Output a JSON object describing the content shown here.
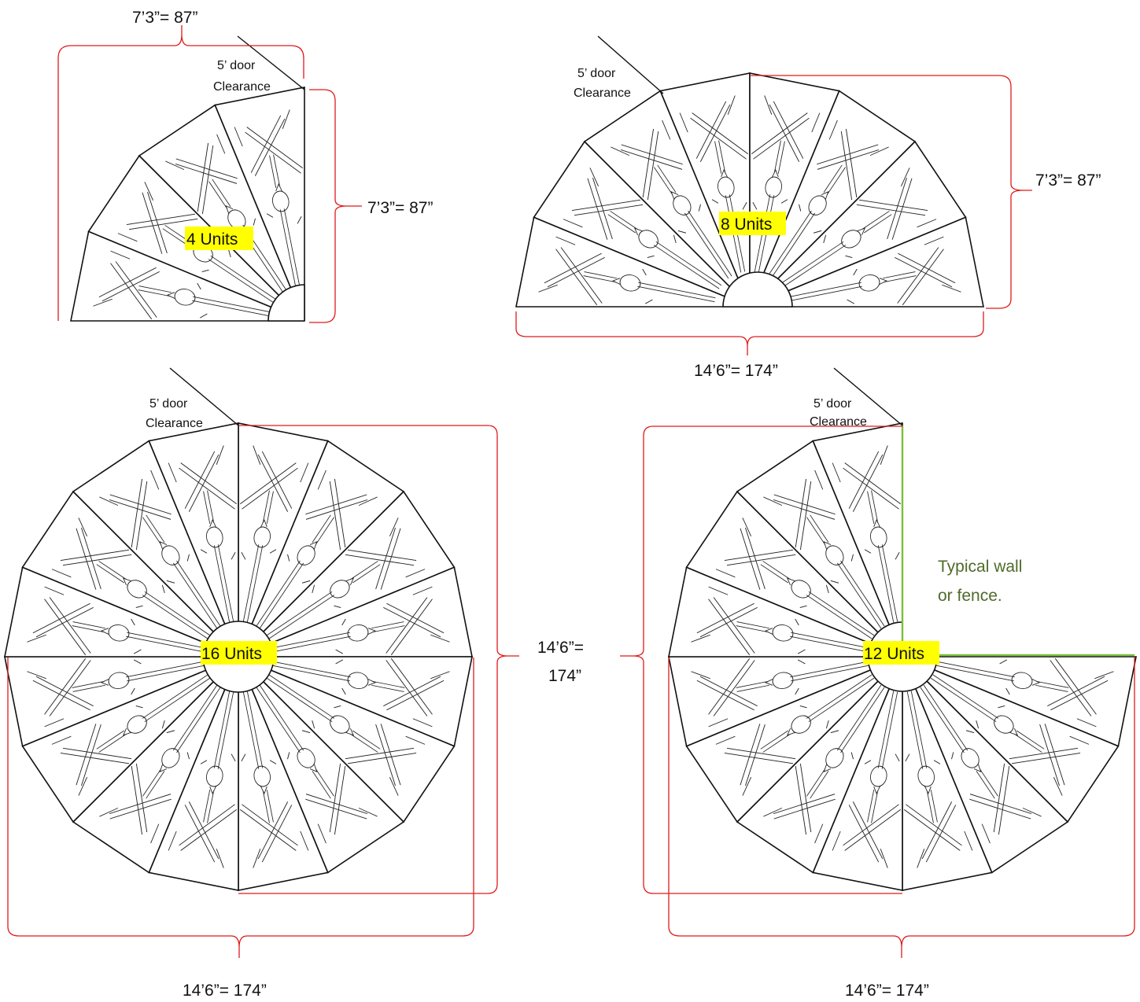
{
  "colors": {
    "dimension": "#e01b1b",
    "wall": "#7bbf3a",
    "wall_text": "#4f6b2c",
    "highlight": "#ffff00",
    "line": "#111111"
  },
  "labels": {
    "door_line1": "5’ door",
    "door_line2": "Clearance",
    "wall_line1": "Typical wall",
    "wall_line2": "or fence."
  },
  "layouts": [
    {
      "units": 4,
      "units_label": "4 Units",
      "dim_top": "7’3”= 87”",
      "dim_right": "7’3”= 87”"
    },
    {
      "units": 8,
      "units_label": "8 Units",
      "dim_right": "7’3”= 87”",
      "dim_bottom": "14’6”= 174”"
    },
    {
      "units": 16,
      "units_label": "16 Units",
      "dim_bottom": "14’6”= 174”"
    },
    {
      "units": 12,
      "units_label": "12 Units",
      "dim_bottom": "14’6”= 174”"
    }
  ],
  "shared_height_label": {
    "line1": "14’6”=",
    "line2": "174”"
  }
}
